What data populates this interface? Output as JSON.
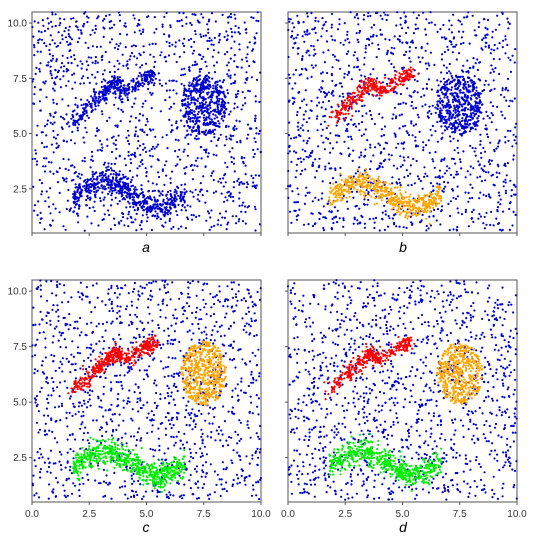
{
  "chart_data": [
    {
      "type": "scatter",
      "panel_label": "a",
      "xlim": [
        0,
        10
      ],
      "ylim": [
        0.5,
        10.5
      ],
      "x_ticks": [],
      "y_ticks": [
        "2.5",
        "5.0",
        "7.5",
        "10.0"
      ],
      "grid": false,
      "series": [
        {
          "color": "#0000cc",
          "shape": "noise",
          "count": 1300
        },
        {
          "color": "#0000cc",
          "shape": "zigzag",
          "count": 320
        },
        {
          "color": "#0000cc",
          "shape": "ellipse",
          "cx": 7.5,
          "cy": 6.3,
          "rx": 1.0,
          "ry": 1.35,
          "count": 420
        },
        {
          "color": "#0000cc",
          "shape": "wave",
          "count": 520
        }
      ]
    },
    {
      "type": "scatter",
      "panel_label": "b",
      "xlim": [
        0,
        10
      ],
      "ylim": [
        0.5,
        10.5
      ],
      "x_ticks": [],
      "y_ticks": [],
      "grid": false,
      "series": [
        {
          "color": "#0000cc",
          "shape": "noise",
          "count": 1300
        },
        {
          "color": "#ff0000",
          "shape": "zigzag",
          "count": 320
        },
        {
          "color": "#0000cc",
          "shape": "ellipse",
          "cx": 7.5,
          "cy": 6.3,
          "rx": 1.0,
          "ry": 1.35,
          "count": 420
        },
        {
          "color": "#ffa500",
          "shape": "wave",
          "count": 520
        }
      ]
    },
    {
      "type": "scatter",
      "panel_label": "c",
      "xlim": [
        0,
        10
      ],
      "ylim": [
        0.5,
        10.5
      ],
      "x_ticks": [
        "0.0",
        "2.5",
        "5.0",
        "7.5",
        "10.0"
      ],
      "y_ticks": [
        "2.5",
        "5.0",
        "7.5",
        "10.0"
      ],
      "grid": false,
      "series": [
        {
          "color": "#0000cc",
          "shape": "noise",
          "count": 1300
        },
        {
          "color": "#ff0000",
          "shape": "zigzag",
          "count": 420
        },
        {
          "color": "#ffa500",
          "shape": "ellipse",
          "cx": 7.5,
          "cy": 6.3,
          "rx": 1.0,
          "ry": 1.45,
          "count": 520
        },
        {
          "color": "#00ee00",
          "shape": "wave",
          "count": 620
        }
      ]
    },
    {
      "type": "scatter",
      "panel_label": "d",
      "xlim": [
        0,
        10
      ],
      "ylim": [
        0.5,
        10.5
      ],
      "x_ticks": [
        "0.0",
        "2.5",
        "5.0",
        "7.5",
        "10.0"
      ],
      "y_ticks": [],
      "grid": false,
      "series": [
        {
          "color": "#0000cc",
          "shape": "noise",
          "count": 1300
        },
        {
          "color": "#ff0000",
          "shape": "zigzag",
          "count": 320
        },
        {
          "color": "#ffa500",
          "shape": "ellipse",
          "cx": 7.5,
          "cy": 6.3,
          "rx": 1.0,
          "ry": 1.4,
          "count": 460
        },
        {
          "color": "#00ee00",
          "shape": "wave",
          "count": 560
        }
      ]
    }
  ]
}
